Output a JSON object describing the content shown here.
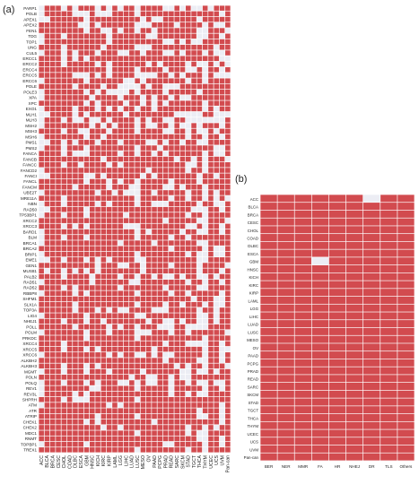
{
  "panel_a_label": "(a)",
  "panel_b_label": "(b)",
  "colors": {
    "present": "#d24b4f",
    "absent": "#ecedf4",
    "grid": "#ffffff"
  },
  "chart_data": [
    {
      "type": "heatmap",
      "panel": "(a)",
      "rows": [
        "PARP1",
        "POLB",
        "APEX1",
        "APEX2",
        "FEN1",
        "TDG",
        "TOP1",
        "UNG",
        "CUL5",
        "ERCC1",
        "ERCC2",
        "ERCC4",
        "ERCC5",
        "ERCC6",
        "POLE",
        "POLE3",
        "XPA",
        "XPC",
        "EXO1",
        "MLH1",
        "MLH3",
        "MSH2",
        "MSH3",
        "MSH6",
        "PMS1",
        "PMS2",
        "FANCA",
        "FANCB",
        "FANCC",
        "FANCD2",
        "FANCI",
        "FANCL",
        "FANCM",
        "UBE2T",
        "MRE11A",
        "NBN",
        "RAD50",
        "TP53BP1",
        "XRCC2",
        "XRCC3",
        "BARD1",
        "BLM",
        "BRCA1",
        "BRCA2",
        "BRIP1",
        "EME1",
        "GEN1",
        "MUS81",
        "PALB2",
        "RAD51",
        "RAD52",
        "RBBP8",
        "SHFM1",
        "SLX1A",
        "TOP3A",
        "LIG4",
        "NHEJ1",
        "POLL",
        "POLM",
        "PRKDC",
        "XRCC4",
        "XRCC5",
        "XRCC6",
        "ALKBH2",
        "ALKBH3",
        "MGMT",
        "POLN",
        "POLQ",
        "REV1",
        "REV3L",
        "SHPRH",
        "ATM",
        "ATR",
        "ATRIP",
        "CHEK1",
        "CHEK2",
        "MDC1",
        "RNMT",
        "TOPBP1",
        "TREX1"
      ],
      "columns": [
        "ACC",
        "BLCA",
        "BRCA",
        "CESC",
        "CHOL",
        "COAD",
        "DLBC",
        "ESCA",
        "GBM",
        "HNSC",
        "KICH",
        "KIRC",
        "KIRP",
        "LAML",
        "LGG",
        "LIHC",
        "LUAD",
        "LUSC",
        "MESO",
        "OV",
        "PAAD",
        "PCPG",
        "PRAD",
        "READ",
        "SARC",
        "SKCM",
        "STAD",
        "TGCT",
        "THCA",
        "THYM",
        "UCEC",
        "UCS",
        "UVM",
        "Pan-can"
      ],
      "matrix": [
        "0111010111010101101111001010010111",
        "0111110001000111101111111111111101",
        "0011111101111111110100111111011111",
        "1111111001011111100011110111101001",
        "1111111101100101101101111111001110",
        "0111011111110111111001111111001101",
        "0111111111110111111111001010011111",
        "1111011111101111100011111111111011",
        "0111010111011100110111001011101001",
        "1111010101111111111111111111111100",
        "1111011111010111111010111101001010",
        "1111111111110111101111011100101101",
        "1111110001010111100001101011101000",
        "0111111101111110010111111101101111",
        "1111110111101100001011000111111111",
        "0111111101010000101111011111011111",
        "0111111110111101110101101001111111",
        "1111111101011110110101011111101111",
        "0111110111010101101101111111101011",
        "0011110101111110111111110000011000",
        "0111010010010111101011001100000001",
        "0111111110101011101001101001011101",
        "1111011001110111101111001101001011",
        "0111111101101111111111111101101101",
        "0011010111011101111001011011001111",
        "0111011101111111101110111111111001",
        "1111010001111101101101011111101001",
        "1111111111101111111111110110101110",
        "1111011011110101111111111100101111",
        "0111111111111111111011111101101111",
        "0011111100101111110101111111011011",
        "1111111101110101101111101111011111",
        "1111110111110111001111001011101111",
        "0111111111011010001101111101101011",
        "1111011111111111101111101101101010",
        "0111011111010111101100011111011001",
        "0011111101111111111111111110001101",
        "0111011101111110111111111101101111",
        "1111111111111111111111011111001110",
        "1111010101111110001111111100101101",
        "0111111111111111101011111011001101",
        "0111011101111111101111101101111111",
        "0111111111111101111101111111001111",
        "1111111111111111111111101111101001",
        "0111111111111111101111111101001001",
        "0011011101010111100111111111001111",
        "1111111111011100110111101111011110",
        "1011010101011111110111111111011101",
        "1111011110111101101101001011001011",
        "0111111110111111001111111101101101",
        "1111010111111101111111011111001111",
        "0111110101111111101111101101111101",
        "1111111111111111111111111110111001",
        "1111110111111111101111011011101001",
        "1111110111010100111100011111011011",
        "0111111101111111100111111111001011",
        "1111011101101111111011001011001011",
        "1111110111110101101110001100001111",
        "0111111101110111100011101101111110",
        "1111111101111111101111111111101111",
        "1111011111111111111111011100001101",
        "1111011101011111111101111111101100",
        "0111111111110101100101001111101101",
        "1111111111111111111111011111001101",
        "1111011101011111111111110101101110",
        "0111011101110111110111111001001011",
        "1111111111111111011001101001111111",
        "0111011101011100101001101101001001",
        "0111111110011111101111101111101101",
        "0111110101111111111111101101001111",
        "1111010001111111101111111111111111",
        "0111111111110101111111111111111101",
        "1111111111111111111111111111011101",
        "1111111111011111101111111111001101",
        "1111111101011111111101111111111101",
        "1111111111101101111111111101101011",
        "1111111111111111101111111101001111",
        "1111111111111111111111111111001101",
        "0111111101111111111111001111101101",
        "1111111111111111101111111101101111"
      ]
    },
    {
      "type": "heatmap",
      "panel": "(b)",
      "rows": [
        "ACC",
        "BLCA",
        "BRCA",
        "CESC",
        "CHOL",
        "COAD",
        "DLBC",
        "ESCA",
        "GBM",
        "HNSC",
        "KICH",
        "KIRC",
        "KIRP",
        "LAML",
        "LGG",
        "LIHC",
        "LUAD",
        "LUSC",
        "MESO",
        "OV",
        "PAAD",
        "PCPG",
        "PRAD",
        "READ",
        "SARC",
        "SKCM",
        "STAD",
        "TGCT",
        "THCA",
        "THYM",
        "UCEC",
        "UCS",
        "UVM",
        "Pan-can"
      ],
      "columns": [
        "BER",
        "NER",
        "MMR",
        "FA",
        "HR",
        "NHEJ",
        "DR",
        "TLS",
        "Others"
      ],
      "matrix": [
        "111111011",
        "111111111",
        "111111111",
        "111111111",
        "111111111",
        "111111111",
        "111111111",
        "111111111",
        "111011111",
        "111111111",
        "111111111",
        "111111111",
        "111111111",
        "111111111",
        "111111111",
        "111111111",
        "111111111",
        "111111111",
        "111111111",
        "111111111",
        "111111111",
        "111111111",
        "111111111",
        "111111111",
        "111111111",
        "111111111",
        "111111111",
        "111111111",
        "111111111",
        "111111111",
        "111111111",
        "111111111",
        "111111111",
        "111111111"
      ]
    }
  ]
}
